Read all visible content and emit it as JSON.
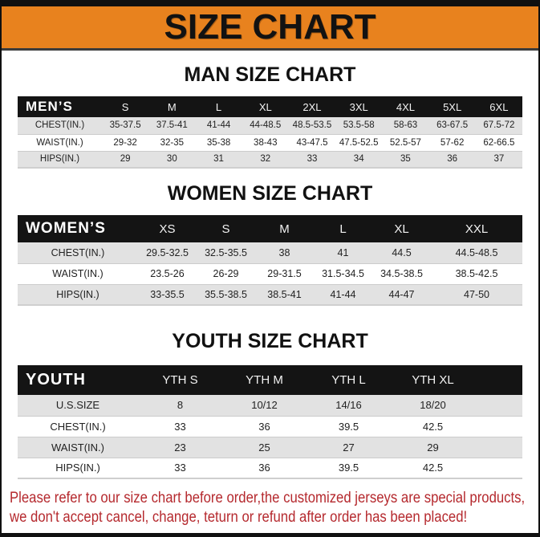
{
  "banner": {
    "title": "SIZE CHART"
  },
  "colors": {
    "banner_orange": "#E8821E",
    "header_black": "#141414",
    "row_gray": "#E2E2E2",
    "footer_red": "#B5292E"
  },
  "sections": [
    {
      "id": "men",
      "title": "MAN SIZE CHART",
      "table": {
        "label": "MEN’S",
        "columns": [
          "S",
          "M",
          "L",
          "XL",
          "2XL",
          "3XL",
          "4XL",
          "5XL",
          "6XL"
        ],
        "rows": [
          {
            "label": "CHEST(IN.)",
            "values": [
              "35-37.5",
              "37.5-41",
              "41-44",
              "44-48.5",
              "48.5-53.5",
              "53.5-58",
              "58-63",
              "63-67.5",
              "67.5-72"
            ]
          },
          {
            "label": "WAIST(IN.)",
            "values": [
              "29-32",
              "32-35",
              "35-38",
              "38-43",
              "43-47.5",
              "47.5-52.5",
              "52.5-57",
              "57-62",
              "62-66.5"
            ]
          },
          {
            "label": "HIPS(IN.)",
            "values": [
              "29",
              "30",
              "31",
              "32",
              "33",
              "34",
              "35",
              "36",
              "37"
            ]
          }
        ]
      }
    },
    {
      "id": "women",
      "title": "WOMEN SIZE CHART",
      "table": {
        "label": "WOMEN’S",
        "columns": [
          "XS",
          "S",
          "M",
          "L",
          "XL",
          "XXL"
        ],
        "rows": [
          {
            "label": "CHEST(IN.)",
            "values": [
              "29.5-32.5",
              "32.5-35.5",
              "38",
              "41",
              "44.5",
              "44.5-48.5"
            ]
          },
          {
            "label": "WAIST(IN.)",
            "values": [
              "23.5-26",
              "26-29",
              "29-31.5",
              "31.5-34.5",
              "34.5-38.5",
              "38.5-42.5"
            ]
          },
          {
            "label": "HIPS(IN.)",
            "values": [
              "33-35.5",
              "35.5-38.5",
              "38.5-41",
              "41-44",
              "44-47",
              "47-50"
            ]
          }
        ]
      }
    },
    {
      "id": "youth",
      "title": "YOUTH SIZE CHART",
      "table": {
        "label": "YOUTH",
        "columns": [
          "YTH S",
          "YTH M",
          "YTH L",
          "YTH XL"
        ],
        "rows": [
          {
            "label": "U.S.SIZE",
            "values": [
              "8",
              "10/12",
              "14/16",
              "18/20"
            ]
          },
          {
            "label": "CHEST(IN.)",
            "values": [
              "33",
              "36",
              "39.5",
              "42.5"
            ]
          },
          {
            "label": "WAIST(IN.)",
            "values": [
              "23",
              "25",
              "27",
              "29"
            ]
          },
          {
            "label": "HIPS(IN.)",
            "values": [
              "33",
              "36",
              "39.5",
              "42.5"
            ]
          }
        ]
      }
    }
  ],
  "footer": {
    "line1": "Please refer to our size chart before order,the customized jerseys are special products,",
    "line2": "we don't accept cancel, change, teturn or refund after order has been placed!"
  }
}
